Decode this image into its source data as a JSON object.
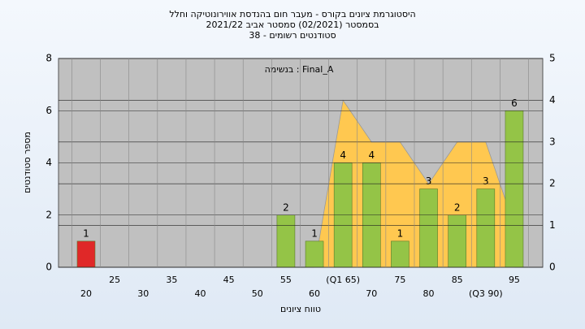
{
  "chart_data": {
    "type": "bar",
    "title": "היסטוגרמת ציונים בקורס - מעבר חום בהנדסת אווירונוטיקה וחלל",
    "subtitle": "בסמסטר (02/2021) סמסטר אביב 2021/22",
    "subtitle2": "סטודנטים רשומים - 38",
    "annotation": "בנשימה : Final_A",
    "x_label": "טווח ציונים",
    "y_label": "מספר סטודנטים",
    "categories": [
      "20",
      "25",
      "30",
      "35",
      "40",
      "45",
      "50",
      "55",
      "60",
      "(Q1 65)",
      "70",
      "75",
      "80",
      "85",
      "(Q3 90)",
      "95"
    ],
    "values": [
      1,
      0,
      0,
      0,
      0,
      0,
      0,
      2,
      1,
      4,
      4,
      1,
      3,
      2,
      3,
      6
    ],
    "bar_colors": [
      "#e02828",
      "#94c447",
      "#94c447",
      "#94c447",
      "#94c447",
      "#94c447",
      "#94c447",
      "#94c447",
      "#94c447",
      "#94c447",
      "#94c447",
      "#94c447",
      "#94c447",
      "#94c447",
      "#94c447",
      "#94c447"
    ],
    "ylim": [
      0,
      8
    ],
    "yticks": [
      0,
      2,
      4,
      6,
      8
    ],
    "y2lim": [
      0,
      5
    ],
    "y2ticks": [
      0,
      1,
      2,
      3,
      4,
      5
    ],
    "series": [
      {
        "type": "area",
        "axis": "y2",
        "color": "#ffc850",
        "values": [
          null,
          null,
          null,
          null,
          null,
          null,
          null,
          null,
          0,
          4,
          3,
          3,
          2,
          3,
          3,
          1
        ]
      }
    ],
    "grid": true
  }
}
